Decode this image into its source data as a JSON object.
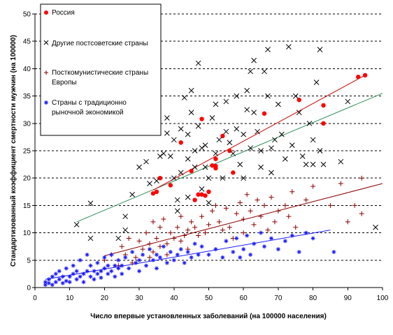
{
  "chart_data": {
    "type": "scatter",
    "title": "",
    "xlabel": "Число впервые установленных заболеваний (на 100000 населения)",
    "ylabel": "Стандартизованный коэффициент смертности мужчин (на 100000)",
    "xlim": [
      0,
      100
    ],
    "ylim": [
      0,
      50
    ],
    "x_ticks": [
      "0",
      "10",
      "20",
      "30",
      "40",
      "50",
      "60",
      "70",
      "80",
      "90",
      "100"
    ],
    "y_ticks": [
      "0",
      "5",
      "10",
      "15",
      "20",
      "25",
      "30",
      "35",
      "40",
      "45",
      "50"
    ],
    "grid": "horizontal dashed",
    "legend_position": "top-left",
    "series": [
      {
        "name": "Россия",
        "marker": "circle",
        "color": "#ff0000",
        "points": [
          [
            34,
            17.2
          ],
          [
            35,
            17.5
          ],
          [
            36,
            20
          ],
          [
            39,
            18.7
          ],
          [
            42,
            26.5
          ],
          [
            45,
            21.3
          ],
          [
            46,
            16
          ],
          [
            47,
            17
          ],
          [
            48,
            30.8
          ],
          [
            48,
            17
          ],
          [
            49,
            16.8
          ],
          [
            50,
            17.5
          ],
          [
            51,
            22.3
          ],
          [
            52,
            21.8
          ],
          [
            52,
            23.5
          ],
          [
            52,
            22.2
          ],
          [
            54,
            27.7
          ],
          [
            56,
            25
          ],
          [
            57,
            21
          ],
          [
            66,
            31.8
          ],
          [
            76,
            34.3
          ],
          [
            83,
            33.3
          ],
          [
            83,
            30
          ],
          [
            93,
            38.5
          ],
          [
            95,
            38.8
          ]
        ]
      },
      {
        "name": "Другие постсоветские страны",
        "marker": "x",
        "color": "#000000",
        "points": [
          [
            12,
            11.5
          ],
          [
            16,
            15.4
          ],
          [
            16,
            9
          ],
          [
            24,
            9
          ],
          [
            26,
            13
          ],
          [
            26,
            10.5
          ],
          [
            28,
            17
          ],
          [
            30,
            22
          ],
          [
            32,
            23
          ],
          [
            33,
            19
          ],
          [
            35,
            19.5
          ],
          [
            36,
            24
          ],
          [
            37,
            24.5
          ],
          [
            38,
            31
          ],
          [
            38,
            28.2
          ],
          [
            39,
            24
          ],
          [
            40,
            27
          ],
          [
            40,
            20
          ],
          [
            41,
            16
          ],
          [
            41,
            14
          ],
          [
            42,
            29
          ],
          [
            42,
            21
          ],
          [
            43,
            34.7
          ],
          [
            44,
            28
          ],
          [
            44,
            23.5
          ],
          [
            44,
            16.5
          ],
          [
            45,
            36
          ],
          [
            45,
            32
          ],
          [
            46,
            25
          ],
          [
            46,
            22
          ],
          [
            47,
            41
          ],
          [
            47,
            29.5
          ],
          [
            48,
            25.5
          ],
          [
            48,
            18
          ],
          [
            49,
            26
          ],
          [
            49,
            22
          ],
          [
            50,
            20
          ],
          [
            50,
            15.5
          ],
          [
            51,
            31
          ],
          [
            52,
            33.5
          ],
          [
            52,
            24.5
          ],
          [
            53,
            27
          ],
          [
            54,
            20
          ],
          [
            55,
            34
          ],
          [
            55,
            28.5
          ],
          [
            56,
            26.5
          ],
          [
            57,
            24.5
          ],
          [
            58,
            35
          ],
          [
            58,
            29
          ],
          [
            59,
            22.5
          ],
          [
            60,
            28
          ],
          [
            60,
            20
          ],
          [
            61,
            36
          ],
          [
            61,
            32.5
          ],
          [
            62,
            25.5
          ],
          [
            62,
            39.5
          ],
          [
            63,
            41.5
          ],
          [
            63,
            32
          ],
          [
            64,
            28.5
          ],
          [
            65,
            25
          ],
          [
            65,
            22
          ],
          [
            66,
            39.5
          ],
          [
            67,
            43.5
          ],
          [
            67,
            35
          ],
          [
            68,
            25.5
          ],
          [
            68,
            21
          ],
          [
            69,
            27
          ],
          [
            70,
            33.5
          ],
          [
            71,
            28
          ],
          [
            72,
            23.5
          ],
          [
            73,
            44
          ],
          [
            74,
            26
          ],
          [
            75,
            35
          ],
          [
            76,
            32
          ],
          [
            77,
            24
          ],
          [
            78,
            22.5
          ],
          [
            79,
            30
          ],
          [
            80,
            22.5
          ],
          [
            80,
            27
          ],
          [
            81,
            37.5
          ],
          [
            82,
            43.5
          ],
          [
            82,
            25
          ],
          [
            83,
            22.5
          ],
          [
            88,
            23
          ],
          [
            90,
            34
          ],
          [
            98,
            11
          ]
        ]
      },
      {
        "name": "Посткомунистические страны Европы",
        "marker": "plus",
        "color": "#8b0000",
        "points": [
          [
            20,
            5
          ],
          [
            22,
            6
          ],
          [
            24,
            4
          ],
          [
            25,
            7.5
          ],
          [
            26,
            6
          ],
          [
            27,
            9
          ],
          [
            28,
            4.5
          ],
          [
            29,
            5.5
          ],
          [
            30,
            8.5
          ],
          [
            31,
            7
          ],
          [
            32,
            10
          ],
          [
            33,
            8
          ],
          [
            33,
            5.5
          ],
          [
            34,
            12
          ],
          [
            34,
            6.5
          ],
          [
            35,
            9
          ],
          [
            36,
            11
          ],
          [
            36,
            7.5
          ],
          [
            37,
            12.5
          ],
          [
            38,
            8
          ],
          [
            38,
            6
          ],
          [
            39,
            10
          ],
          [
            40,
            9
          ],
          [
            41,
            11
          ],
          [
            42,
            13
          ],
          [
            42,
            8.5
          ],
          [
            43,
            9.5
          ],
          [
            44,
            10.5
          ],
          [
            44,
            7
          ],
          [
            45,
            12
          ],
          [
            46,
            11
          ],
          [
            47,
            9.5
          ],
          [
            48,
            13
          ],
          [
            49,
            10
          ],
          [
            50,
            11.5
          ],
          [
            51,
            14
          ],
          [
            52,
            15
          ],
          [
            53,
            12
          ],
          [
            54,
            10.5
          ],
          [
            55,
            14.5
          ],
          [
            56,
            11
          ],
          [
            57,
            9
          ],
          [
            58,
            13.5
          ],
          [
            59,
            15.5
          ],
          [
            60,
            12.5
          ],
          [
            60,
            10
          ],
          [
            61,
            17
          ],
          [
            62,
            14
          ],
          [
            63,
            11.5
          ],
          [
            64,
            16
          ],
          [
            65,
            13
          ],
          [
            66,
            15
          ],
          [
            67,
            10.5
          ],
          [
            68,
            16.5
          ],
          [
            69,
            12
          ],
          [
            70,
            14
          ],
          [
            72,
            15
          ],
          [
            73,
            13
          ],
          [
            74,
            17.5
          ],
          [
            75,
            11
          ],
          [
            78,
            16
          ],
          [
            80,
            18.5
          ],
          [
            85,
            15
          ],
          [
            88,
            19
          ],
          [
            90,
            12
          ],
          [
            92,
            15
          ],
          [
            94,
            20
          ],
          [
            94,
            13.5
          ]
        ]
      },
      {
        "name": "Страны с традиционно рыночной экономикой",
        "marker": "asterisk",
        "color": "#1a1aff",
        "points": [
          [
            3,
            1
          ],
          [
            3,
            0.5
          ],
          [
            4,
            1.5
          ],
          [
            4,
            0.8
          ],
          [
            5,
            2
          ],
          [
            5,
            0.5
          ],
          [
            6,
            1
          ],
          [
            6,
            2.5
          ],
          [
            7,
            1.5
          ],
          [
            7,
            3
          ],
          [
            8,
            0.8
          ],
          [
            8,
            2
          ],
          [
            9,
            1.2
          ],
          [
            9,
            3.5
          ],
          [
            10,
            2
          ],
          [
            10,
            1
          ],
          [
            11,
            2.5
          ],
          [
            11,
            4
          ],
          [
            12,
            1.5
          ],
          [
            12,
            3
          ],
          [
            13,
            2
          ],
          [
            13,
            5
          ],
          [
            14,
            2.5
          ],
          [
            14,
            1
          ],
          [
            15,
            3
          ],
          [
            15,
            6
          ],
          [
            16,
            2
          ],
          [
            16,
            4
          ],
          [
            17,
            3
          ],
          [
            17,
            1.5
          ],
          [
            18,
            2.5
          ],
          [
            18,
            4.5
          ],
          [
            19,
            3
          ],
          [
            19,
            1.8
          ],
          [
            20,
            3.5
          ],
          [
            20,
            5.5
          ],
          [
            21,
            2.5
          ],
          [
            21,
            4
          ],
          [
            22,
            3
          ],
          [
            22,
            6
          ],
          [
            23,
            4
          ],
          [
            23,
            2
          ],
          [
            24,
            3.5
          ],
          [
            24,
            5
          ],
          [
            25,
            4
          ],
          [
            25,
            2.5
          ],
          [
            26,
            5.5
          ],
          [
            27,
            3.5
          ],
          [
            28,
            6.5
          ],
          [
            29,
            4.5
          ],
          [
            30,
            5
          ],
          [
            30,
            3
          ],
          [
            31,
            6
          ],
          [
            32,
            4
          ],
          [
            33,
            7
          ],
          [
            34,
            5
          ],
          [
            35,
            6
          ],
          [
            35,
            3.5
          ],
          [
            36,
            5.5
          ],
          [
            37,
            7.5
          ],
          [
            38,
            4.5
          ],
          [
            39,
            6.5
          ],
          [
            40,
            5
          ],
          [
            41,
            6
          ],
          [
            42,
            7
          ],
          [
            43,
            4.5
          ],
          [
            44,
            6.5
          ],
          [
            45,
            5.5
          ],
          [
            46,
            8
          ],
          [
            47,
            6
          ],
          [
            48,
            7.5
          ],
          [
            50,
            6
          ],
          [
            52,
            7
          ],
          [
            54,
            5.5
          ],
          [
            55,
            8.5
          ],
          [
            57,
            6.5
          ],
          [
            58,
            9
          ],
          [
            59,
            5.5
          ],
          [
            60,
            7
          ],
          [
            61,
            9.5
          ],
          [
            62,
            6
          ],
          [
            63,
            8
          ],
          [
            65,
            10
          ],
          [
            66,
            7.5
          ],
          [
            68,
            9
          ],
          [
            70,
            7
          ],
          [
            72,
            8.5
          ],
          [
            74,
            9.5
          ],
          [
            76,
            6.5
          ],
          [
            78,
            10
          ],
          [
            80,
            9
          ],
          [
            86,
            6.5
          ]
        ]
      }
    ],
    "trendlines": [
      {
        "series": "Другие постсоветские страны",
        "color": "#2e8b57",
        "x": [
          12,
          100
        ],
        "y": [
          12,
          35.5
        ]
      },
      {
        "series": "Россия",
        "color": "#cc0000",
        "x": [
          34,
          95
        ],
        "y": [
          17.8,
          38.8
        ]
      },
      {
        "series": "Посткомунистические страны Европы",
        "color": "#8b0000",
        "x": [
          20,
          100
        ],
        "y": [
          5.8,
          19
        ]
      },
      {
        "series": "Страны с традиционно рыночной экономикой",
        "color": "#1a1aff",
        "x": [
          3,
          85
        ],
        "y": [
          1.5,
          10.5
        ]
      }
    ]
  }
}
